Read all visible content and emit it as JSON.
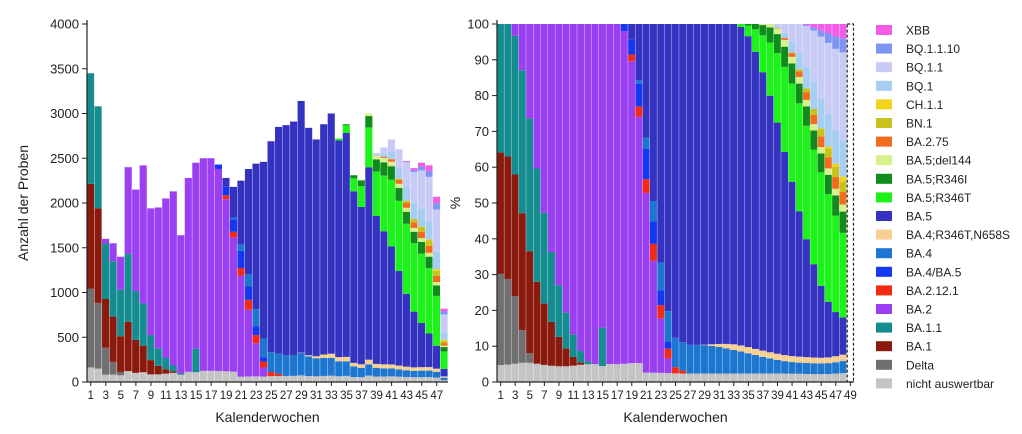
{
  "chart_data": [
    {
      "type": "bar",
      "stacked": true,
      "ylabel": "Anzahl der Proben",
      "xlabel": "Kalenderwochen",
      "ylim": [
        0,
        4000
      ],
      "yticks": [
        "0",
        "500",
        "1000",
        "1500",
        "2000",
        "2500",
        "3000",
        "3500",
        "4000"
      ],
      "ytick_values": [
        0,
        500,
        1000,
        1500,
        2000,
        2500,
        3000,
        3500,
        4000
      ],
      "xtick_labels": [
        "1",
        "3",
        "5",
        "7",
        "9",
        "11",
        "13",
        "15",
        "17",
        "19",
        "21",
        "23",
        "25",
        "27",
        "29",
        "31",
        "33",
        "35",
        "37",
        "39",
        "41",
        "43",
        "45",
        "47"
      ],
      "xtick_weeks": [
        1,
        3,
        5,
        7,
        9,
        11,
        13,
        15,
        17,
        19,
        21,
        23,
        25,
        27,
        29,
        31,
        33,
        35,
        37,
        39,
        41,
        43,
        45,
        47
      ],
      "weeks": [
        1,
        2,
        3,
        4,
        5,
        6,
        7,
        8,
        9,
        10,
        11,
        12,
        13,
        14,
        15,
        16,
        17,
        18,
        19,
        20,
        21,
        22,
        23,
        24,
        25,
        26,
        27,
        28,
        29,
        30,
        31,
        32,
        33,
        34,
        35,
        36,
        37,
        38,
        39,
        40,
        41,
        42,
        43,
        44,
        45,
        46,
        47,
        48
      ],
      "totals": [
        3450,
        3080,
        1600,
        1550,
        1400,
        2400,
        2150,
        2420,
        1940,
        1950,
        2050,
        2130,
        1640,
        2280,
        2450,
        2500,
        2500,
        2430,
        2280,
        2180,
        2250,
        2380,
        2440,
        2460,
        2690,
        2850,
        2870,
        2910,
        3140,
        2840,
        2710,
        2880,
        3000,
        2720,
        2880,
        2310,
        2260,
        3000,
        2560,
        2620,
        2710,
        2600,
        2470,
        2390,
        2450,
        2420,
        2070,
        820
      ],
      "grid": false
    },
    {
      "type": "bar",
      "stacked": true,
      "normalized": true,
      "ylabel": "%",
      "xlabel": "Kalenderwochen",
      "ylim": [
        0,
        100
      ],
      "yticks": [
        "0",
        "10",
        "20",
        "30",
        "40",
        "50",
        "60",
        "70",
        "80",
        "90",
        "100"
      ],
      "ytick_values": [
        0,
        10,
        20,
        30,
        40,
        50,
        60,
        70,
        80,
        90,
        100
      ],
      "xtick_labels": [
        "1",
        "3",
        "5",
        "7",
        "9",
        "11",
        "13",
        "15",
        "17",
        "19",
        "21",
        "23",
        "25",
        "27",
        "29",
        "31",
        "33",
        "35",
        "37",
        "39",
        "41",
        "43",
        "45",
        "47",
        "49"
      ],
      "xtick_weeks": [
        1,
        3,
        5,
        7,
        9,
        11,
        13,
        15,
        17,
        19,
        21,
        23,
        25,
        27,
        29,
        31,
        33,
        35,
        37,
        39,
        41,
        43,
        45,
        47,
        49
      ],
      "weeks": [
        1,
        2,
        3,
        4,
        5,
        6,
        7,
        8,
        9,
        10,
        11,
        12,
        13,
        14,
        15,
        16,
        17,
        18,
        19,
        20,
        21,
        22,
        23,
        24,
        25,
        26,
        27,
        28,
        29,
        30,
        31,
        32,
        33,
        34,
        35,
        36,
        37,
        38,
        39,
        40,
        41,
        42,
        43,
        44,
        45,
        46,
        47,
        48,
        49
      ],
      "grid": false
    }
  ],
  "legend": {
    "placement": "right",
    "items": [
      {
        "label": "XBB",
        "color": "#f25ce6"
      },
      {
        "label": "BQ.1.1.10",
        "color": "#7f95f5"
      },
      {
        "label": "BQ.1.1",
        "color": "#c7cbf5"
      },
      {
        "label": "BQ.1",
        "color": "#a6cdf2"
      },
      {
        "label": "CH.1.1",
        "color": "#f2d31c"
      },
      {
        "label": "BN.1",
        "color": "#c8c21a"
      },
      {
        "label": "BA.2.75",
        "color": "#f26c1d"
      },
      {
        "label": "BA.5;del144",
        "color": "#d6f28c"
      },
      {
        "label": "BA.5;R346I",
        "color": "#0f8c1c"
      },
      {
        "label": "BA.5;R346T",
        "color": "#1df21a"
      },
      {
        "label": "BA.5",
        "color": "#3432c0"
      },
      {
        "label": "BA.4;R346T,N658S",
        "color": "#f7cf90"
      },
      {
        "label": "BA.4",
        "color": "#1d76cf"
      },
      {
        "label": "BA.4/BA.5",
        "color": "#1437f2"
      },
      {
        "label": "BA.2.12.1",
        "color": "#f22a16"
      },
      {
        "label": "BA.2",
        "color": "#9a3ff2"
      },
      {
        "label": "BA.1.1",
        "color": "#158c8f"
      },
      {
        "label": "BA.1",
        "color": "#8b1a0e"
      },
      {
        "label": "Delta",
        "color": "#707070"
      },
      {
        "label": "nicht auswertbar",
        "color": "#c4c4c4"
      }
    ]
  }
}
